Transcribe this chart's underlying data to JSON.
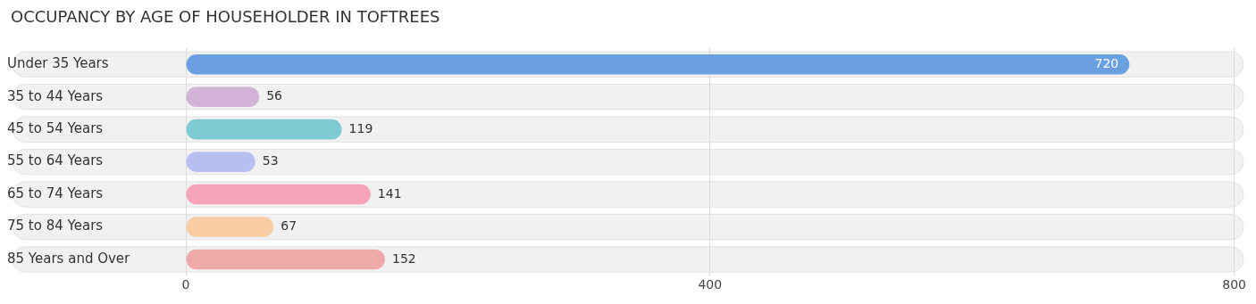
{
  "chart_data": {
    "type": "bar",
    "orientation": "horizontal",
    "title": "OCCUPANCY BY AGE OF HOUSEHOLDER IN TOFTREES",
    "categories": [
      "Under 35 Years",
      "35 to 44 Years",
      "45 to 54 Years",
      "55 to 64 Years",
      "65 to 74 Years",
      "75 to 84 Years",
      "85 Years and Over"
    ],
    "values": [
      720,
      56,
      119,
      53,
      141,
      67,
      152
    ],
    "colors": [
      "#6a9fe0",
      "#d1b3d6",
      "#7ecad3",
      "#b8bff0",
      "#f7a3ba",
      "#f9cda3",
      "#eeaaa8"
    ],
    "xlim": [
      0,
      800
    ],
    "xticks": [
      0,
      400,
      800
    ],
    "grid": "x",
    "legend": false,
    "data_labels": true
  }
}
